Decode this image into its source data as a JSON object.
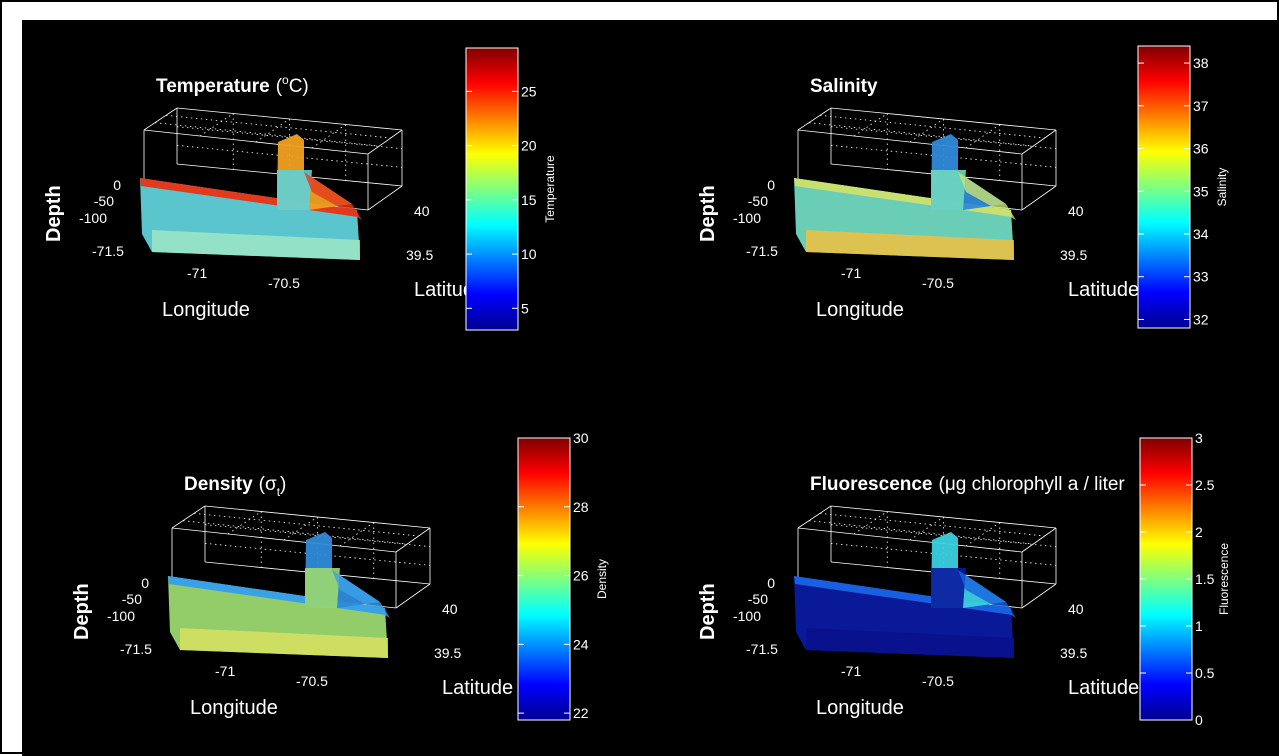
{
  "colors": {
    "background": "#000000",
    "axis": "#ffffff",
    "frame": "#000000"
  },
  "chart_data": [
    {
      "type": "3d-section",
      "title": "Temperature",
      "title_suffix": "(",
      "title_sup": "o",
      "title_end": "C)",
      "xlabel": "Longitude",
      "ylabel": "Latitude",
      "zlabel": "Depth",
      "xticks": [
        "-71.5",
        "-71",
        "-70.5"
      ],
      "yticks": [
        "40",
        "39.5"
      ],
      "zticks": [
        "0",
        "-50",
        "-100"
      ],
      "xlim": [
        -71.5,
        -70.3
      ],
      "ylim": [
        39.3,
        40.2
      ],
      "zlim": [
        -120,
        0
      ],
      "grid": true,
      "colormap": "jet",
      "colorbar": {
        "label": "Temperature",
        "range": [
          3,
          29
        ],
        "ticks": [
          5,
          10,
          15,
          20,
          25
        ],
        "tick_labels": [
          "5",
          "10",
          "15",
          "20",
          "25"
        ]
      },
      "section_colors": {
        "surface": "#e23a1c",
        "upper": "#f0a020",
        "body": "#5fd0d8",
        "deep": "#9ee6c6"
      }
    },
    {
      "type": "3d-section",
      "title": "Salinity",
      "title_suffix": "",
      "title_sup": "",
      "title_end": "",
      "xlabel": "Longitude",
      "ylabel": "Latitude",
      "zlabel": "Depth",
      "xticks": [
        "-71.5",
        "-71",
        "-70.5"
      ],
      "yticks": [
        "40",
        "39.5"
      ],
      "zticks": [
        "0",
        "-50",
        "-100"
      ],
      "xlim": [
        -71.5,
        -70.3
      ],
      "ylim": [
        39.3,
        40.2
      ],
      "zlim": [
        -120,
        0
      ],
      "grid": true,
      "colormap": "jet",
      "colorbar": {
        "label": "Salinity",
        "range": [
          31.8,
          38.4
        ],
        "ticks": [
          32,
          33,
          34,
          35,
          36,
          37,
          38
        ],
        "tick_labels": [
          "32",
          "33",
          "34",
          "35",
          "36",
          "37",
          "38"
        ]
      },
      "section_colors": {
        "surface": "#c8e070",
        "upper": "#2f8ad8",
        "body": "#70d8c0",
        "deep": "#f0c040"
      }
    },
    {
      "type": "3d-section",
      "title": "Density",
      "title_suffix": "(",
      "title_sup": "",
      "title_end": ")",
      "title_greek": "σ",
      "title_sub": "t",
      "xlabel": "Longitude",
      "ylabel": "Latitude",
      "zlabel": "Depth",
      "xticks": [
        "-71.5",
        "-71",
        "-70.5"
      ],
      "yticks": [
        "40",
        "39.5"
      ],
      "zticks": [
        "0",
        "-50",
        "-100"
      ],
      "xlim": [
        -71.5,
        -70.3
      ],
      "ylim": [
        39.3,
        40.2
      ],
      "zlim": [
        -120,
        0
      ],
      "grid": true,
      "colormap": "jet",
      "colorbar": {
        "label": "Density",
        "range": [
          21.8,
          30
        ],
        "ticks": [
          22,
          24,
          26,
          28,
          30
        ],
        "tick_labels": [
          "22",
          "24",
          "26",
          "28",
          "30"
        ]
      },
      "section_colors": {
        "surface": "#3aa0e8",
        "upper": "#2f8ad8",
        "body": "#9ad870",
        "deep": "#d8e060"
      }
    },
    {
      "type": "3d-section",
      "title": "Fluorescence",
      "title_suffix": "(",
      "title_greek": "μ",
      "title_end": "g chlorophyll a / liter",
      "title_sup": "",
      "xlabel": "Longitude",
      "ylabel": "Latitude",
      "zlabel": "Depth",
      "xticks": [
        "-71.5",
        "-71",
        "-70.5"
      ],
      "yticks": [
        "40",
        "39.5"
      ],
      "zticks": [
        "0",
        "-50",
        "-100"
      ],
      "xlim": [
        -71.5,
        -70.3
      ],
      "ylim": [
        39.3,
        40.2
      ],
      "zlim": [
        -120,
        0
      ],
      "grid": true,
      "colormap": "jet",
      "colorbar": {
        "label": "Fluorescence",
        "range": [
          0,
          3
        ],
        "ticks": [
          0,
          0.5,
          1,
          1.5,
          2,
          2.5,
          3
        ],
        "tick_labels": [
          "0",
          "0.5",
          "1",
          "1.5",
          "2",
          "2.5",
          "3"
        ]
      },
      "section_colors": {
        "surface": "#1860e0",
        "upper": "#3ad0e0",
        "body": "#0a1aa0",
        "deep": "#0a108a"
      }
    }
  ]
}
